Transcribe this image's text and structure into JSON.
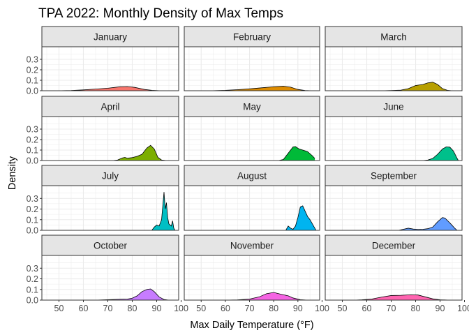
{
  "chart_data": {
    "type": "area",
    "title": "TPA 2022: Monthly Density of Max Temps",
    "xlabel": "Max Daily Temperature (°F)",
    "ylabel": "Density",
    "xlim": [
      43,
      99
    ],
    "ylim": [
      0,
      0.42
    ],
    "x_ticks": [
      50,
      60,
      70,
      80,
      90,
      100
    ],
    "x_tick_labels": [
      "50",
      "60",
      "70",
      "80",
      "90",
      "100"
    ],
    "y_ticks": [
      0.0,
      0.1,
      0.2,
      0.3
    ],
    "y_tick_labels": [
      "0.0",
      "0.1",
      "0.2",
      "0.3"
    ],
    "grid": true,
    "facet_layout": "4 rows x 3 columns",
    "facets": [
      {
        "label": "January",
        "fill": "#F8766D",
        "points": [
          [
            49,
            0
          ],
          [
            55,
            0.002
          ],
          [
            60,
            0.008
          ],
          [
            65,
            0.016
          ],
          [
            70,
            0.024
          ],
          [
            75,
            0.038
          ],
          [
            78,
            0.04
          ],
          [
            81,
            0.032
          ],
          [
            85,
            0.012
          ],
          [
            88,
            0.004
          ],
          [
            91,
            0.001
          ],
          [
            97,
            0
          ]
        ]
      },
      {
        "label": "February",
        "fill": "#DE8C00",
        "points": [
          [
            49,
            0
          ],
          [
            55,
            0.001
          ],
          [
            60,
            0.004
          ],
          [
            65,
            0.01
          ],
          [
            70,
            0.018
          ],
          [
            75,
            0.028
          ],
          [
            80,
            0.038
          ],
          [
            84,
            0.043
          ],
          [
            87,
            0.034
          ],
          [
            90,
            0.012
          ],
          [
            93,
            0.002
          ],
          [
            96,
            0
          ]
        ]
      },
      {
        "label": "March",
        "fill": "#B79F00",
        "points": [
          [
            49,
            0
          ],
          [
            66,
            0
          ],
          [
            70,
            0.002
          ],
          [
            74,
            0.006
          ],
          [
            77,
            0.02
          ],
          [
            80,
            0.05
          ],
          [
            83,
            0.06
          ],
          [
            85,
            0.075
          ],
          [
            87,
            0.082
          ],
          [
            89,
            0.06
          ],
          [
            91,
            0.02
          ],
          [
            93,
            0.004
          ],
          [
            95,
            0
          ]
        ]
      },
      {
        "label": "April",
        "fill": "#7CAE00",
        "points": [
          [
            49,
            0
          ],
          [
            72,
            0
          ],
          [
            74,
            0.005
          ],
          [
            76,
            0.025
          ],
          [
            77,
            0.03
          ],
          [
            78,
            0.022
          ],
          [
            80,
            0.028
          ],
          [
            82,
            0.04
          ],
          [
            84,
            0.06
          ],
          [
            86,
            0.12
          ],
          [
            87.5,
            0.145
          ],
          [
            89,
            0.11
          ],
          [
            90.5,
            0.03
          ],
          [
            92,
            0.005
          ],
          [
            94,
            0
          ]
        ]
      },
      {
        "label": "May",
        "fill": "#00BA38",
        "points": [
          [
            49,
            0
          ],
          [
            82,
            0
          ],
          [
            84,
            0.01
          ],
          [
            86,
            0.07
          ],
          [
            88,
            0.13
          ],
          [
            89,
            0.133
          ],
          [
            90.5,
            0.11
          ],
          [
            92,
            0.1
          ],
          [
            94,
            0.085
          ],
          [
            96,
            0.045
          ],
          [
            97,
            0.02
          ]
        ]
      },
      {
        "label": "June",
        "fill": "#00C08B",
        "points": [
          [
            49,
            0
          ],
          [
            83,
            0
          ],
          [
            85,
            0.005
          ],
          [
            87,
            0.02
          ],
          [
            89,
            0.06
          ],
          [
            91,
            0.11
          ],
          [
            92.5,
            0.13
          ],
          [
            94,
            0.128
          ],
          [
            95.5,
            0.09
          ],
          [
            97,
            0.02
          ],
          [
            97.5,
            0
          ]
        ]
      },
      {
        "label": "July",
        "fill": "#00BFC4",
        "points": [
          [
            49,
            0
          ],
          [
            88,
            0
          ],
          [
            89,
            0.03
          ],
          [
            90,
            0.05
          ],
          [
            91,
            0.04
          ],
          [
            92,
            0.1
          ],
          [
            93,
            0.36
          ],
          [
            93.5,
            0.2
          ],
          [
            94,
            0.26
          ],
          [
            94.5,
            0.12
          ],
          [
            95,
            0.06
          ],
          [
            96,
            0.04
          ],
          [
            96.5,
            0.09
          ],
          [
            97,
            0.02
          ],
          [
            97.5,
            0
          ]
        ]
      },
      {
        "label": "August",
        "fill": "#00B4F0",
        "points": [
          [
            49,
            0
          ],
          [
            85,
            0
          ],
          [
            86,
            0.04
          ],
          [
            87,
            0.02
          ],
          [
            88,
            0.01
          ],
          [
            89,
            0.04
          ],
          [
            90,
            0.12
          ],
          [
            91,
            0.22
          ],
          [
            92,
            0.23
          ],
          [
            93,
            0.18
          ],
          [
            94,
            0.13
          ],
          [
            95,
            0.1
          ],
          [
            96,
            0.06
          ],
          [
            97,
            0.02
          ],
          [
            97.5,
            0
          ]
        ]
      },
      {
        "label": "September",
        "fill": "#619CFF",
        "points": [
          [
            49,
            0
          ],
          [
            73,
            0
          ],
          [
            75,
            0.01
          ],
          [
            77,
            0.02
          ],
          [
            79,
            0.012
          ],
          [
            81,
            0.008
          ],
          [
            83,
            0.01
          ],
          [
            85,
            0.015
          ],
          [
            87,
            0.03
          ],
          [
            89,
            0.08
          ],
          [
            91,
            0.12
          ],
          [
            92,
            0.115
          ],
          [
            94,
            0.07
          ],
          [
            96,
            0.02
          ],
          [
            97,
            0
          ]
        ]
      },
      {
        "label": "October",
        "fill": "#C77CFF",
        "points": [
          [
            49,
            0
          ],
          [
            65,
            0
          ],
          [
            70,
            0.004
          ],
          [
            75,
            0.008
          ],
          [
            78,
            0.01
          ],
          [
            80,
            0.018
          ],
          [
            82,
            0.04
          ],
          [
            84,
            0.08
          ],
          [
            86,
            0.1
          ],
          [
            87.5,
            0.105
          ],
          [
            89,
            0.08
          ],
          [
            91,
            0.03
          ],
          [
            93,
            0.006
          ],
          [
            95,
            0
          ]
        ]
      },
      {
        "label": "November",
        "fill": "#F564E3",
        "points": [
          [
            49,
            0
          ],
          [
            60,
            0
          ],
          [
            65,
            0.002
          ],
          [
            70,
            0.01
          ],
          [
            74,
            0.03
          ],
          [
            77,
            0.06
          ],
          [
            80,
            0.072
          ],
          [
            83,
            0.055
          ],
          [
            86,
            0.04
          ],
          [
            88,
            0.02
          ],
          [
            91,
            0.004
          ],
          [
            94,
            0
          ]
        ]
      },
      {
        "label": "December",
        "fill": "#FF64B0",
        "points": [
          [
            49,
            0
          ],
          [
            55,
            0
          ],
          [
            58,
            0.003
          ],
          [
            62,
            0.01
          ],
          [
            66,
            0.028
          ],
          [
            70,
            0.043
          ],
          [
            74,
            0.045
          ],
          [
            78,
            0.05
          ],
          [
            81,
            0.048
          ],
          [
            84,
            0.03
          ],
          [
            87,
            0.012
          ],
          [
            90,
            0.003
          ],
          [
            94,
            0
          ]
        ]
      }
    ]
  },
  "colors": {
    "strip_background": "#E5E5E5",
    "grid": "#EBEBEB",
    "panel_border": "#333333",
    "density_line": "#000000"
  }
}
